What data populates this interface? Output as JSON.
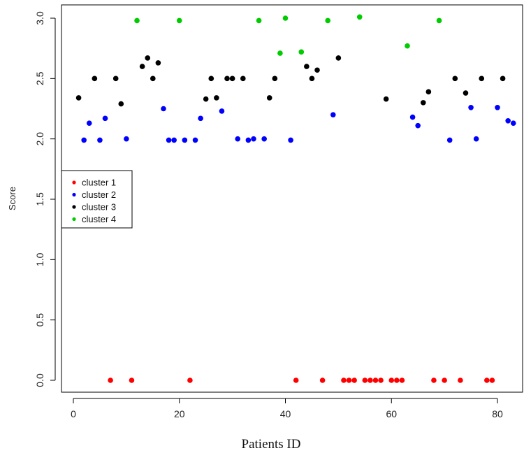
{
  "chart_data": {
    "type": "scatter",
    "title": "",
    "xlabel": "Patients ID",
    "ylabel": "Score",
    "xlim": [
      -2,
      84
    ],
    "ylim": [
      -0.1,
      3.05
    ],
    "x_ticks": [
      0,
      20,
      40,
      60,
      80
    ],
    "y_ticks": [
      0.0,
      0.5,
      1.0,
      1.5,
      2.0,
      2.5,
      3.0
    ],
    "y_tick_labels": [
      "0.0",
      "0.5",
      "1.0",
      "1.5",
      "2.0",
      "2.5",
      "3.0"
    ],
    "grid": false,
    "legend_position": "left-middle",
    "series": [
      {
        "name": "cluster 1",
        "color": "#ff0000",
        "points": [
          [
            7,
            0
          ],
          [
            11,
            0
          ],
          [
            22,
            0
          ],
          [
            42,
            0
          ],
          [
            47,
            0
          ],
          [
            51,
            0
          ],
          [
            52,
            0
          ],
          [
            53,
            0
          ],
          [
            55,
            0
          ],
          [
            56,
            0
          ],
          [
            57,
            0
          ],
          [
            58,
            0
          ],
          [
            60,
            0
          ],
          [
            61,
            0
          ],
          [
            62,
            0
          ],
          [
            68,
            0
          ],
          [
            70,
            0
          ],
          [
            73,
            0
          ],
          [
            78,
            0
          ],
          [
            79,
            0
          ]
        ]
      },
      {
        "name": "cluster 2",
        "color": "#0000ff",
        "points": [
          [
            2,
            1.99
          ],
          [
            3,
            2.13
          ],
          [
            5,
            1.99
          ],
          [
            6,
            2.17
          ],
          [
            10,
            2.0
          ],
          [
            17,
            2.25
          ],
          [
            18,
            1.99
          ],
          [
            19,
            1.99
          ],
          [
            21,
            1.99
          ],
          [
            23,
            1.99
          ],
          [
            24,
            2.17
          ],
          [
            28,
            2.23
          ],
          [
            31,
            2.0
          ],
          [
            33,
            1.99
          ],
          [
            34,
            2.0
          ],
          [
            36,
            2.0
          ],
          [
            41,
            1.99
          ],
          [
            49,
            2.2
          ],
          [
            64,
            2.18
          ],
          [
            65,
            2.11
          ],
          [
            71,
            1.99
          ],
          [
            75,
            2.26
          ],
          [
            76,
            2.0
          ],
          [
            80,
            2.26
          ],
          [
            82,
            2.15
          ],
          [
            83,
            2.13
          ]
        ]
      },
      {
        "name": "cluster 3",
        "color": "#000000",
        "points": [
          [
            1,
            2.34
          ],
          [
            4,
            2.5
          ],
          [
            8,
            2.5
          ],
          [
            9,
            2.29
          ],
          [
            13,
            2.6
          ],
          [
            14,
            2.67
          ],
          [
            15,
            2.5
          ],
          [
            16,
            2.63
          ],
          [
            25,
            2.33
          ],
          [
            26,
            2.5
          ],
          [
            27,
            2.34
          ],
          [
            29,
            2.5
          ],
          [
            30,
            2.5
          ],
          [
            32,
            2.5
          ],
          [
            37,
            2.34
          ],
          [
            38,
            2.5
          ],
          [
            44,
            2.6
          ],
          [
            45,
            2.5
          ],
          [
            46,
            2.57
          ],
          [
            50,
            2.67
          ],
          [
            59,
            2.33
          ],
          [
            66,
            2.3
          ],
          [
            67,
            2.39
          ],
          [
            72,
            2.5
          ],
          [
            74,
            2.38
          ],
          [
            77,
            2.5
          ],
          [
            81,
            2.5
          ]
        ]
      },
      {
        "name": "cluster 4",
        "color": "#00cc00",
        "points": [
          [
            12,
            2.98
          ],
          [
            20,
            2.98
          ],
          [
            35,
            2.98
          ],
          [
            39,
            2.71
          ],
          [
            40,
            3.0
          ],
          [
            43,
            2.72
          ],
          [
            48,
            2.98
          ],
          [
            54,
            3.01
          ],
          [
            63,
            2.77
          ],
          [
            69,
            2.98
          ]
        ]
      }
    ]
  }
}
